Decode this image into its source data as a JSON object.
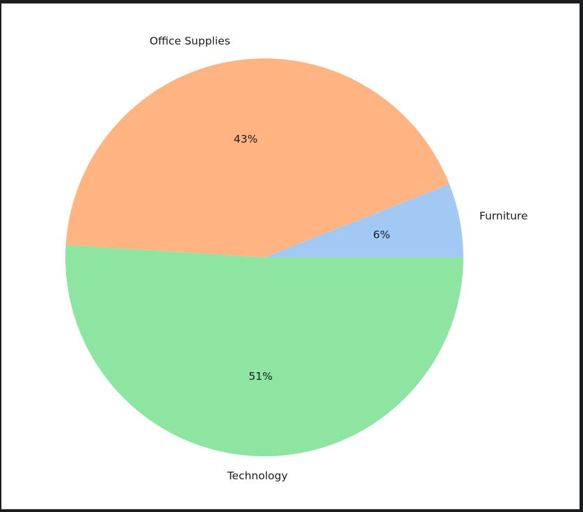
{
  "chart_data": {
    "type": "pie",
    "title": "",
    "categories": [
      "Furniture",
      "Office Supplies",
      "Technology"
    ],
    "values": [
      6,
      43,
      51
    ],
    "value_labels": [
      "6%",
      "43%",
      "51%"
    ],
    "colors": [
      "#a1c9f4",
      "#ffb482",
      "#8de5a1"
    ],
    "start_angle_deg": 0,
    "direction": "counterclockwise"
  }
}
